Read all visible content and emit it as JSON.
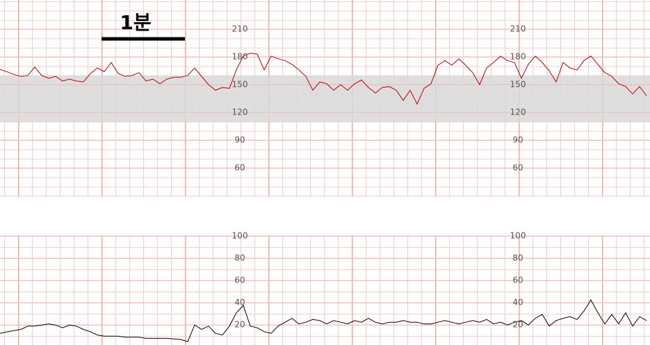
{
  "chart_data": [
    {
      "type": "line",
      "annotation": "1분",
      "color": "#c00000",
      "ylim": [
        30,
        240
      ],
      "yticks": [
        60,
        90,
        120,
        150,
        180,
        210
      ],
      "band": [
        110,
        160
      ],
      "grid": true,
      "values": [
        166.5,
        164,
        161,
        159,
        160,
        169,
        160,
        157,
        159,
        154,
        156,
        154,
        153,
        162,
        168,
        164,
        174,
        162,
        159,
        160,
        163,
        154,
        156,
        151,
        156,
        158,
        158,
        160,
        168,
        159,
        150,
        144,
        147,
        146,
        166,
        181,
        184,
        183,
        166,
        181,
        178,
        176,
        172,
        166,
        159,
        144,
        153,
        151,
        144,
        150,
        144,
        151,
        155,
        147,
        141,
        147,
        148,
        144,
        133,
        144,
        129,
        146,
        151,
        171,
        176,
        171,
        178,
        171,
        163,
        150,
        168,
        174,
        181,
        176,
        174,
        157,
        172,
        181,
        174,
        165,
        153,
        174,
        168,
        166,
        176,
        181,
        172,
        163,
        159,
        151,
        148,
        140,
        148,
        138
      ]
    },
    {
      "type": "line",
      "color": "#000000",
      "ylim": [
        2,
        100
      ],
      "yticks": [
        20,
        40,
        60,
        80,
        100
      ],
      "grid": true,
      "values": [
        12.5,
        13.8,
        15,
        16,
        19,
        19,
        20,
        21,
        20,
        17.5,
        20,
        19,
        16,
        14,
        11,
        10,
        10,
        10,
        9,
        9,
        9,
        8,
        8,
        8,
        8,
        7.5,
        7,
        5,
        20,
        16,
        19,
        12.5,
        11,
        19,
        31,
        37.5,
        19,
        17.5,
        14,
        12.5,
        19,
        22.5,
        26,
        21,
        22.5,
        25,
        24,
        21,
        24,
        22.5,
        21,
        24,
        22.5,
        26,
        22.5,
        21,
        22.5,
        22.5,
        24,
        22.5,
        22.5,
        21,
        21,
        22.5,
        24,
        22.5,
        21,
        22.5,
        24,
        22.5,
        25,
        21,
        22.5,
        20,
        22.5,
        24,
        20,
        26,
        29.5,
        19,
        24,
        26,
        27.5,
        25,
        32.5,
        42.5,
        31,
        21,
        29.5,
        21,
        31,
        19,
        27.5,
        24
      ]
    }
  ]
}
